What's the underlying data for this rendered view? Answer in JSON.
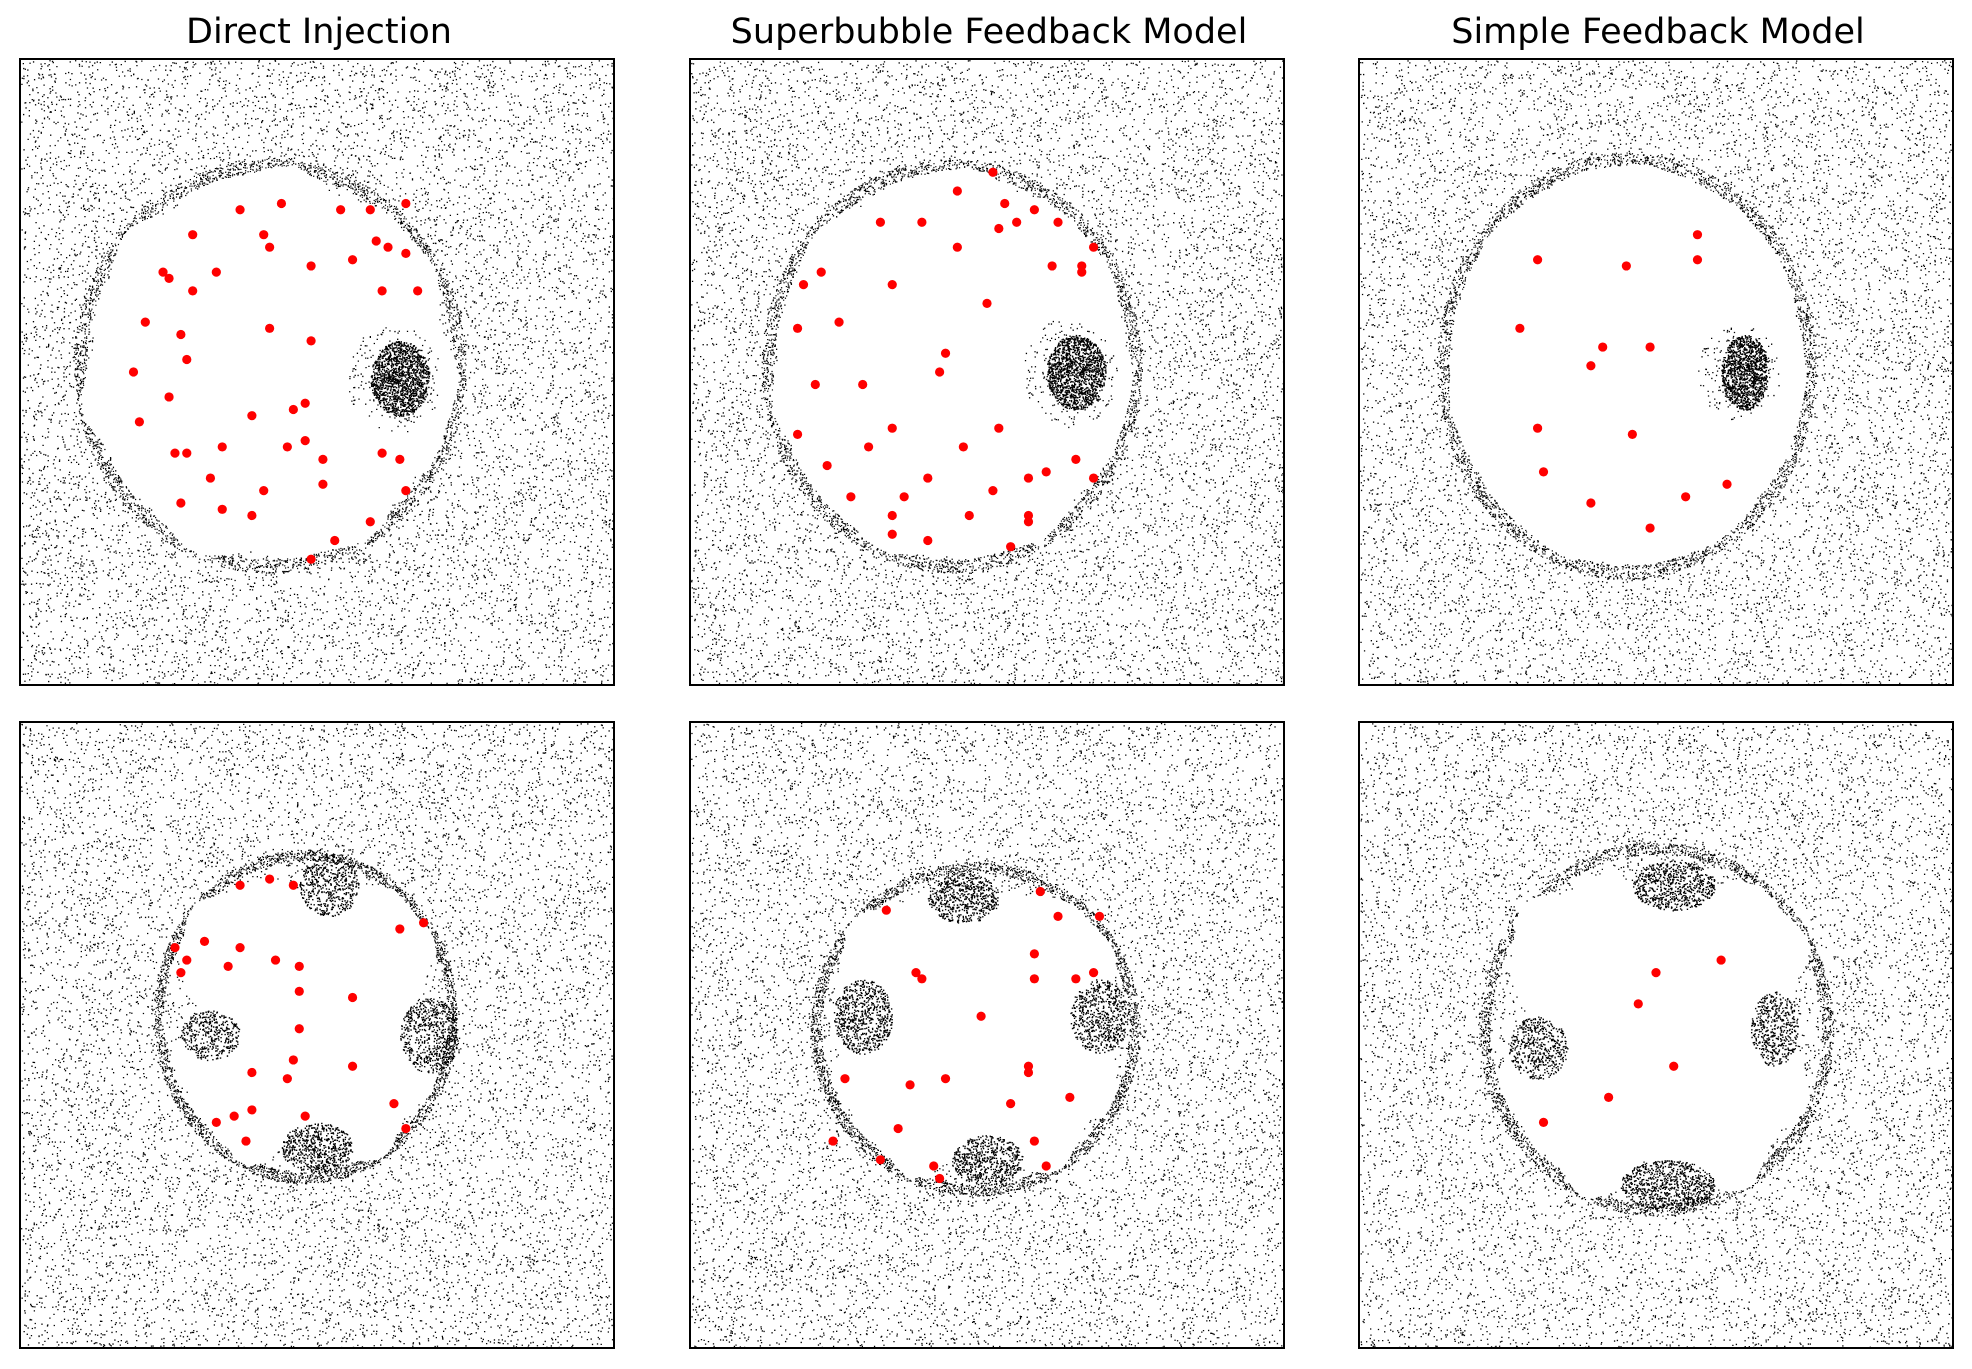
{
  "columns": [
    {
      "title": "Direct Injection"
    },
    {
      "title": "Superbubble Feedback Model"
    },
    {
      "title": "Simple Feedback Model"
    }
  ],
  "colors": {
    "background": "#ffffff",
    "gas_particles": "#000000",
    "star_particles": "#ff0000",
    "frame": "#000000"
  },
  "panels": [
    {
      "row": 0,
      "col": 0,
      "stars": [
        [
          0.37,
          0.24
        ],
        [
          0.44,
          0.23
        ],
        [
          0.54,
          0.24
        ],
        [
          0.59,
          0.24
        ],
        [
          0.65,
          0.23
        ],
        [
          0.29,
          0.28
        ],
        [
          0.41,
          0.28
        ],
        [
          0.42,
          0.3
        ],
        [
          0.6,
          0.29
        ],
        [
          0.65,
          0.31
        ],
        [
          0.56,
          0.32
        ],
        [
          0.49,
          0.33
        ],
        [
          0.62,
          0.3
        ],
        [
          0.24,
          0.34
        ],
        [
          0.25,
          0.35
        ],
        [
          0.33,
          0.34
        ],
        [
          0.29,
          0.37
        ],
        [
          0.61,
          0.37
        ],
        [
          0.67,
          0.37
        ],
        [
          0.21,
          0.42
        ],
        [
          0.27,
          0.44
        ],
        [
          0.42,
          0.43
        ],
        [
          0.49,
          0.45
        ],
        [
          0.28,
          0.48
        ],
        [
          0.19,
          0.5
        ],
        [
          0.25,
          0.54
        ],
        [
          0.48,
          0.55
        ],
        [
          0.46,
          0.56
        ],
        [
          0.39,
          0.57
        ],
        [
          0.2,
          0.58
        ],
        [
          0.48,
          0.61
        ],
        [
          0.26,
          0.63
        ],
        [
          0.28,
          0.63
        ],
        [
          0.34,
          0.62
        ],
        [
          0.45,
          0.62
        ],
        [
          0.61,
          0.63
        ],
        [
          0.51,
          0.64
        ],
        [
          0.64,
          0.64
        ],
        [
          0.32,
          0.67
        ],
        [
          0.41,
          0.69
        ],
        [
          0.51,
          0.68
        ],
        [
          0.65,
          0.69
        ],
        [
          0.27,
          0.71
        ],
        [
          0.34,
          0.72
        ],
        [
          0.39,
          0.73
        ],
        [
          0.59,
          0.74
        ],
        [
          0.53,
          0.77
        ],
        [
          0.49,
          0.8
        ]
      ]
    },
    {
      "row": 0,
      "col": 1,
      "stars": [
        [
          0.51,
          0.18
        ],
        [
          0.45,
          0.21
        ],
        [
          0.53,
          0.23
        ],
        [
          0.58,
          0.24
        ],
        [
          0.32,
          0.26
        ],
        [
          0.39,
          0.26
        ],
        [
          0.52,
          0.27
        ],
        [
          0.55,
          0.26
        ],
        [
          0.62,
          0.26
        ],
        [
          0.45,
          0.3
        ],
        [
          0.68,
          0.3
        ],
        [
          0.61,
          0.33
        ],
        [
          0.66,
          0.34
        ],
        [
          0.66,
          0.33
        ],
        [
          0.22,
          0.34
        ],
        [
          0.19,
          0.36
        ],
        [
          0.34,
          0.36
        ],
        [
          0.5,
          0.39
        ],
        [
          0.18,
          0.43
        ],
        [
          0.25,
          0.42
        ],
        [
          0.43,
          0.47
        ],
        [
          0.42,
          0.5
        ],
        [
          0.21,
          0.52
        ],
        [
          0.29,
          0.52
        ],
        [
          0.18,
          0.6
        ],
        [
          0.34,
          0.59
        ],
        [
          0.52,
          0.59
        ],
        [
          0.3,
          0.62
        ],
        [
          0.46,
          0.62
        ],
        [
          0.65,
          0.64
        ],
        [
          0.23,
          0.65
        ],
        [
          0.4,
          0.67
        ],
        [
          0.57,
          0.67
        ],
        [
          0.6,
          0.66
        ],
        [
          0.68,
          0.67
        ],
        [
          0.27,
          0.7
        ],
        [
          0.36,
          0.7
        ],
        [
          0.51,
          0.69
        ],
        [
          0.34,
          0.73
        ],
        [
          0.47,
          0.73
        ],
        [
          0.57,
          0.73
        ],
        [
          0.57,
          0.74
        ],
        [
          0.34,
          0.76
        ],
        [
          0.4,
          0.77
        ],
        [
          0.54,
          0.78
        ]
      ]
    },
    {
      "row": 0,
      "col": 2,
      "stars": [
        [
          0.57,
          0.28
        ],
        [
          0.3,
          0.32
        ],
        [
          0.45,
          0.33
        ],
        [
          0.57,
          0.32
        ],
        [
          0.27,
          0.43
        ],
        [
          0.41,
          0.46
        ],
        [
          0.49,
          0.46
        ],
        [
          0.39,
          0.49
        ],
        [
          0.3,
          0.59
        ],
        [
          0.46,
          0.6
        ],
        [
          0.31,
          0.66
        ],
        [
          0.62,
          0.68
        ],
        [
          0.55,
          0.7
        ],
        [
          0.39,
          0.71
        ],
        [
          0.49,
          0.75
        ]
      ]
    },
    {
      "row": 1,
      "col": 0,
      "stars": [
        [
          0.42,
          0.25
        ],
        [
          0.37,
          0.26
        ],
        [
          0.46,
          0.26
        ],
        [
          0.64,
          0.33
        ],
        [
          0.68,
          0.32
        ],
        [
          0.31,
          0.35
        ],
        [
          0.26,
          0.36
        ],
        [
          0.37,
          0.36
        ],
        [
          0.28,
          0.38
        ],
        [
          0.43,
          0.38
        ],
        [
          0.35,
          0.39
        ],
        [
          0.47,
          0.39
        ],
        [
          0.27,
          0.4
        ],
        [
          0.47,
          0.43
        ],
        [
          0.56,
          0.44
        ],
        [
          0.47,
          0.49
        ],
        [
          0.46,
          0.54
        ],
        [
          0.56,
          0.55
        ],
        [
          0.39,
          0.56
        ],
        [
          0.45,
          0.57
        ],
        [
          0.63,
          0.61
        ],
        [
          0.39,
          0.62
        ],
        [
          0.36,
          0.63
        ],
        [
          0.33,
          0.64
        ],
        [
          0.48,
          0.63
        ],
        [
          0.65,
          0.65
        ],
        [
          0.38,
          0.67
        ]
      ]
    },
    {
      "row": 1,
      "col": 1,
      "stars": [
        [
          0.33,
          0.3
        ],
        [
          0.59,
          0.27
        ],
        [
          0.62,
          0.31
        ],
        [
          0.69,
          0.31
        ],
        [
          0.58,
          0.37
        ],
        [
          0.38,
          0.4
        ],
        [
          0.39,
          0.41
        ],
        [
          0.58,
          0.41
        ],
        [
          0.68,
          0.4
        ],
        [
          0.65,
          0.41
        ],
        [
          0.49,
          0.47
        ],
        [
          0.57,
          0.55
        ],
        [
          0.57,
          0.56
        ],
        [
          0.26,
          0.57
        ],
        [
          0.43,
          0.57
        ],
        [
          0.37,
          0.58
        ],
        [
          0.64,
          0.6
        ],
        [
          0.54,
          0.61
        ],
        [
          0.35,
          0.65
        ],
        [
          0.24,
          0.67
        ],
        [
          0.58,
          0.67
        ],
        [
          0.32,
          0.7
        ],
        [
          0.41,
          0.71
        ],
        [
          0.6,
          0.71
        ],
        [
          0.42,
          0.73
        ]
      ]
    },
    {
      "row": 1,
      "col": 2,
      "stars": [
        [
          0.61,
          0.38
        ],
        [
          0.5,
          0.4
        ],
        [
          0.47,
          0.45
        ],
        [
          0.53,
          0.55
        ],
        [
          0.42,
          0.6
        ],
        [
          0.31,
          0.64
        ]
      ]
    }
  ]
}
